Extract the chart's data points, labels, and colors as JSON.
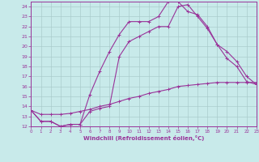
{
  "xlabel": "Windchill (Refroidissement éolien,°C)",
  "background_color": "#c8eaea",
  "grid_color": "#aacccc",
  "line_color": "#993399",
  "xlim": [
    0,
    23
  ],
  "ylim": [
    12,
    24.5
  ],
  "xticks": [
    0,
    1,
    2,
    3,
    4,
    5,
    6,
    7,
    8,
    9,
    10,
    11,
    12,
    13,
    14,
    15,
    16,
    17,
    18,
    19,
    20,
    21,
    22,
    23
  ],
  "yticks": [
    12,
    13,
    14,
    15,
    16,
    17,
    18,
    19,
    20,
    21,
    22,
    23,
    24
  ],
  "curve1_x": [
    0,
    1,
    2,
    3,
    4,
    5,
    6,
    7,
    8,
    9,
    10,
    11,
    12,
    13,
    14,
    15,
    16,
    17,
    18,
    19,
    20,
    21,
    22,
    23
  ],
  "curve1_y": [
    13.6,
    12.5,
    12.5,
    12.0,
    12.2,
    12.2,
    15.2,
    17.5,
    19.5,
    21.2,
    22.5,
    22.5,
    22.5,
    23.0,
    24.5,
    24.5,
    23.5,
    23.2,
    22.0,
    20.2,
    18.8,
    18.0,
    16.5,
    16.2
  ],
  "curve2_x": [
    0,
    1,
    2,
    3,
    4,
    5,
    6,
    7,
    8,
    9,
    10,
    11,
    12,
    13,
    14,
    15,
    16,
    17,
    18,
    19,
    20,
    21,
    22,
    23
  ],
  "curve2_y": [
    13.6,
    12.5,
    12.5,
    12.0,
    12.2,
    12.2,
    13.5,
    13.8,
    14.0,
    19.0,
    20.5,
    21.0,
    21.5,
    22.0,
    22.0,
    24.0,
    24.2,
    23.0,
    21.8,
    20.2,
    19.5,
    18.5,
    17.0,
    16.2
  ],
  "curve3_x": [
    0,
    1,
    2,
    3,
    4,
    5,
    6,
    7,
    8,
    9,
    10,
    11,
    12,
    13,
    14,
    15,
    16,
    17,
    18,
    19,
    20,
    21,
    22,
    23
  ],
  "curve3_y": [
    13.6,
    13.2,
    13.2,
    13.2,
    13.3,
    13.5,
    13.7,
    14.0,
    14.2,
    14.5,
    14.8,
    15.0,
    15.3,
    15.5,
    15.7,
    16.0,
    16.1,
    16.2,
    16.3,
    16.4,
    16.4,
    16.4,
    16.4,
    16.4
  ]
}
